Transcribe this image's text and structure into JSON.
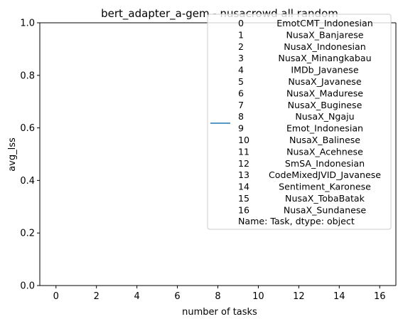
{
  "chart_data": {
    "type": "line",
    "title": "bert_adapter_a-gem - nusacrowd all random",
    "xlabel": "number of tasks",
    "ylabel": "avg_lss",
    "xlim": [
      -0.8,
      16.8
    ],
    "ylim": [
      0.0,
      1.0
    ],
    "x_ticks": [
      "0",
      "2",
      "4",
      "6",
      "8",
      "10",
      "12",
      "14",
      "16"
    ],
    "y_ticks": [
      "0.0",
      "0.2",
      "0.4",
      "0.6",
      "0.8",
      "1.0"
    ],
    "grid": false,
    "legend_position": "top-right",
    "series": [
      {
        "color": "#1f77b4",
        "x": [],
        "y": []
      }
    ],
    "legend": {
      "rows": [
        {
          "index": "0",
          "task": "EmotCMT_Indonesian"
        },
        {
          "index": "1",
          "task": "NusaX_Banjarese"
        },
        {
          "index": "2",
          "task": "NusaX_Indonesian"
        },
        {
          "index": "3",
          "task": "NusaX_Minangkabau"
        },
        {
          "index": "4",
          "task": "IMDb_Javanese"
        },
        {
          "index": "5",
          "task": "NusaX_Javanese"
        },
        {
          "index": "6",
          "task": "NusaX_Madurese"
        },
        {
          "index": "7",
          "task": "NusaX_Buginese"
        },
        {
          "index": "8",
          "task": "NusaX_Ngaju"
        },
        {
          "index": "9",
          "task": "Emot_Indonesian"
        },
        {
          "index": "10",
          "task": "NusaX_Balinese"
        },
        {
          "index": "11",
          "task": "NusaX_Acehnese"
        },
        {
          "index": "12",
          "task": "SmSA_Indonesian"
        },
        {
          "index": "13",
          "task": "CodeMixedJVID_Javanese"
        },
        {
          "index": "14",
          "task": "Sentiment_Karonese"
        },
        {
          "index": "15",
          "task": "NusaX_TobaBatak"
        },
        {
          "index": "16",
          "task": "NusaX_Sundanese"
        }
      ],
      "footer": "Name: Task, dtype: object"
    }
  }
}
